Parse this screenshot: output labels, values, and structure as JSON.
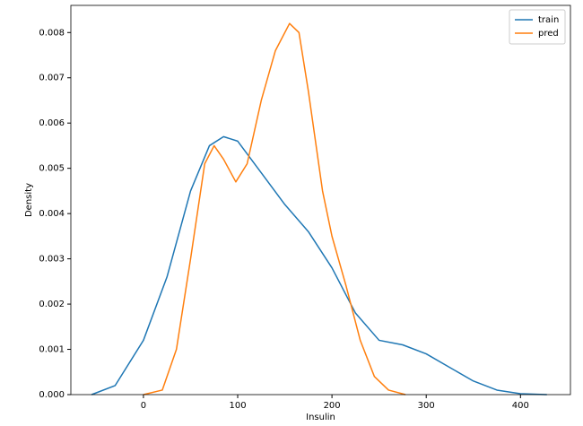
{
  "chart_data": {
    "type": "line",
    "xlabel": "Insulin",
    "ylabel": "Density",
    "xlim": [
      -77,
      453
    ],
    "ylim": [
      0,
      0.0086
    ],
    "xticks": [
      0,
      100,
      200,
      300,
      400
    ],
    "yticks": [
      {
        "value": 0,
        "label": "0.000"
      },
      {
        "value": 0.001,
        "label": "0.001"
      },
      {
        "value": 0.002,
        "label": "0.002"
      },
      {
        "value": 0.003,
        "label": "0.003"
      },
      {
        "value": 0.004,
        "label": "0.004"
      },
      {
        "value": 0.005,
        "label": "0.005"
      },
      {
        "value": 0.006,
        "label": "0.006"
      },
      {
        "value": 0.007,
        "label": "0.007"
      },
      {
        "value": 0.008,
        "label": "0.008"
      }
    ],
    "legend": "upper right",
    "series": [
      {
        "name": "train",
        "color": "#1f77b4",
        "x": [
          -55,
          -30,
          0,
          25,
          50,
          70,
          85,
          100,
          125,
          150,
          175,
          200,
          225,
          250,
          275,
          300,
          325,
          350,
          375,
          400,
          428
        ],
        "values": [
          0,
          0.0002,
          0.0012,
          0.0026,
          0.0045,
          0.0055,
          0.0057,
          0.0056,
          0.0049,
          0.0042,
          0.0036,
          0.0028,
          0.0018,
          0.0012,
          0.0011,
          0.0009,
          0.0006,
          0.0003,
          0.0001,
          2e-05,
          0
        ]
      },
      {
        "name": "pred",
        "color": "#ff7f0e",
        "x": [
          0,
          20,
          35,
          50,
          65,
          75,
          85,
          98,
          110,
          125,
          140,
          155,
          165,
          175,
          190,
          200,
          215,
          230,
          245,
          260,
          278
        ],
        "values": [
          0,
          0.0001,
          0.001,
          0.003,
          0.0051,
          0.0055,
          0.0052,
          0.0047,
          0.0051,
          0.0065,
          0.0076,
          0.0082,
          0.008,
          0.0067,
          0.0045,
          0.0035,
          0.0024,
          0.0012,
          0.0004,
          0.0001,
          0
        ]
      }
    ]
  }
}
